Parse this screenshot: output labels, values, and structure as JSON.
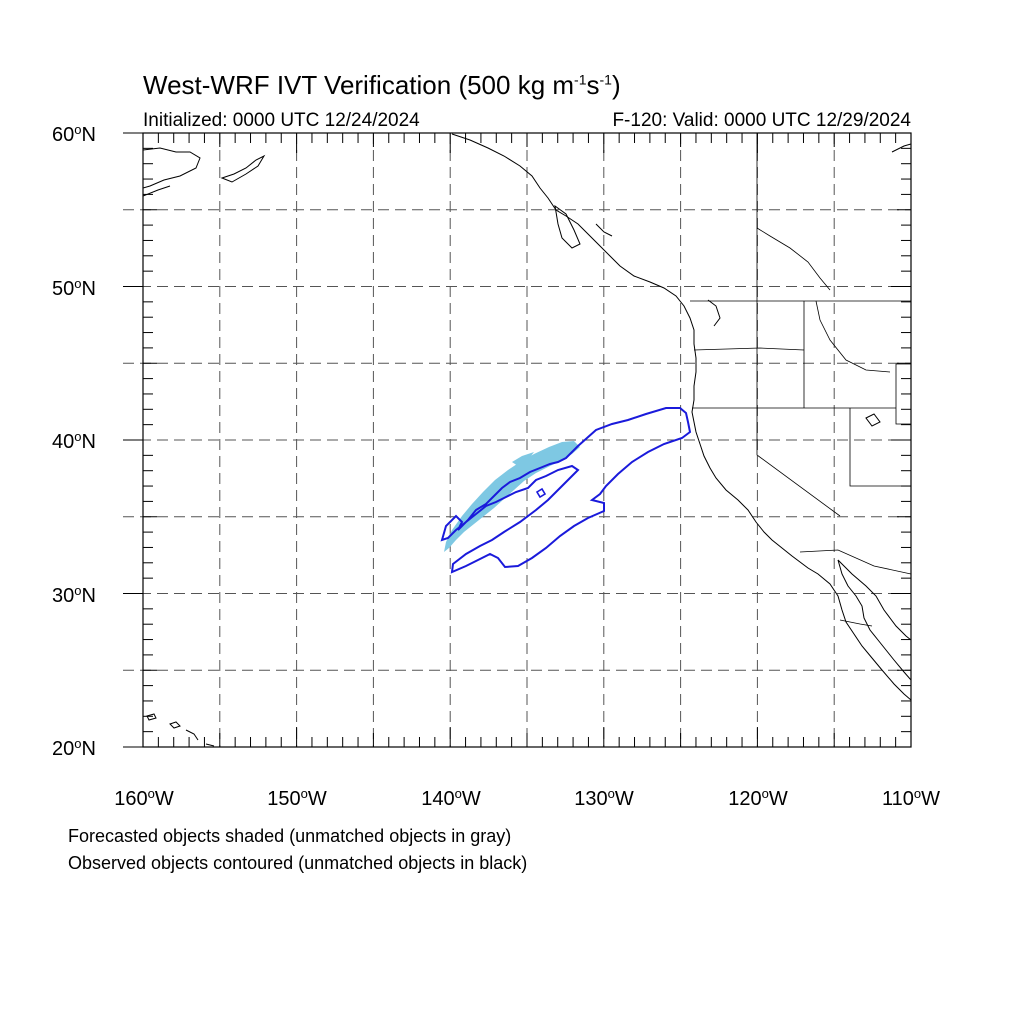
{
  "title": {
    "main": "West-WRF IVT Verification (500 kg m",
    "exp1": "-1",
    "mid": "s",
    "exp2": "-1",
    "end": ")"
  },
  "subtitle_left": "Initialized: 0000 UTC 12/24/2024",
  "subtitle_right": "F-120: Valid: 0000 UTC 12/29/2024",
  "map": {
    "lon_range": [
      -160,
      -110
    ],
    "lat_range": [
      20,
      60
    ],
    "x_ticks": [
      {
        "num": "160",
        "hem": "W"
      },
      {
        "num": "150",
        "hem": "W"
      },
      {
        "num": "140",
        "hem": "W"
      },
      {
        "num": "130",
        "hem": "W"
      },
      {
        "num": "120",
        "hem": "W"
      },
      {
        "num": "110",
        "hem": "W"
      }
    ],
    "y_ticks": [
      {
        "num": "60",
        "hem": "N"
      },
      {
        "num": "50",
        "hem": "N"
      },
      {
        "num": "40",
        "hem": "N"
      },
      {
        "num": "30",
        "hem": "N"
      },
      {
        "num": "20",
        "hem": "N"
      }
    ],
    "gridline_spacing_deg": 5,
    "colors": {
      "forecast_fill": "#7ec8e3",
      "observed_contour": "#1a1adb",
      "coastline": "#000000",
      "grid": "#555555"
    }
  },
  "footnotes": {
    "line1": "Forecasted objects shaded (unmatched objects in gray)",
    "line2": "Observed objects contoured (unmatched objects in black)"
  }
}
